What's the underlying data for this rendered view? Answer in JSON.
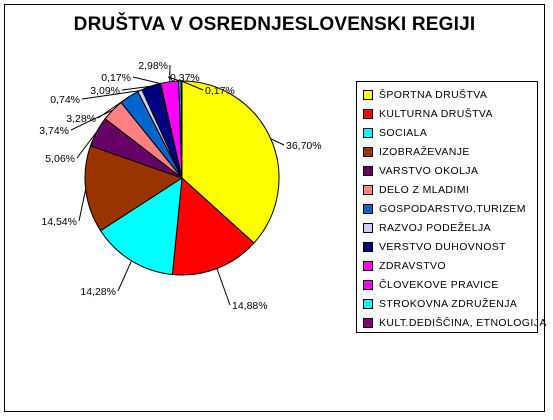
{
  "chart_data": {
    "type": "pie",
    "title": "DRUŠTVA V OSREDNJESLOVENSKI REGIJI",
    "legend_position": "right",
    "slices": [
      {
        "name": "ŠPORTNA DRUŠTVA",
        "value": 36.7,
        "label": "36,70%",
        "color": "#FFFF00"
      },
      {
        "name": "KULTURNA DRUŠTVA",
        "value": 14.88,
        "label": "14,88%",
        "color": "#FF0000"
      },
      {
        "name": "SOCIALA",
        "value": 14.28,
        "label": "14,28%",
        "color": "#00FFFF"
      },
      {
        "name": "IZOBRAŽEVANJE",
        "value": 14.54,
        "label": "14,54%",
        "color": "#993300"
      },
      {
        "name": "VARSTVO OKOLJA",
        "value": 5.06,
        "label": "5,06%",
        "color": "#660066"
      },
      {
        "name": "DELO Z MLADIMI",
        "value": 3.74,
        "label": "3,74%",
        "color": "#FF8080"
      },
      {
        "name": "GOSPODARSTVO,TURIZEM",
        "value": 3.28,
        "label": "3,28%",
        "color": "#0066CC"
      },
      {
        "name": "RAZVOJ PODEŽELJA",
        "value": 0.74,
        "label": "0,74%",
        "color": "#CCCCFF"
      },
      {
        "name": "VERSTVO DUHOVNOST",
        "value": 3.09,
        "label": "3,09%",
        "color": "#000080"
      },
      {
        "name": "ZDRAVSTVO",
        "value": 0.17,
        "label": "0,17%",
        "color": "#FF00FF"
      },
      {
        "name": "ČLOVEKOVE PRAVICE",
        "value": 2.98,
        "label": "2,98%",
        "color": "#FF00FF"
      },
      {
        "name": "STROKOVNA ZDRUŽENJA",
        "value": 0.37,
        "label": "0,37%",
        "color": "#00FFFF"
      },
      {
        "name": "KULT.DEDIŠČINA, ETNOLOGIJA",
        "value": 0.17,
        "label": "0,17%",
        "color": "#800080"
      }
    ]
  }
}
